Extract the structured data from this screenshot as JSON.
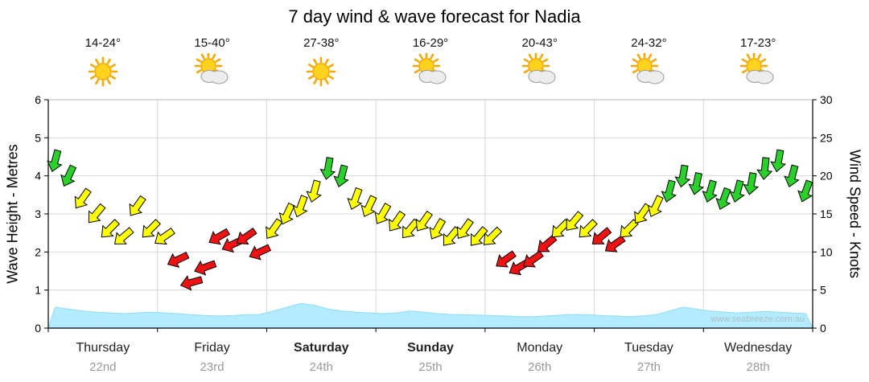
{
  "title": "7 day wind & wave forecast for Nadia",
  "watermark": "www.seabreeze.com.au",
  "axes": {
    "left_label": "Wave Height - Metres",
    "right_label": "Wind Speed - Knots",
    "left_ticks": [
      0,
      1,
      2,
      3,
      4,
      5,
      6
    ],
    "right_ticks": [
      0,
      5,
      10,
      15,
      20,
      25,
      30
    ]
  },
  "days": [
    {
      "name": "Thursday",
      "date": "22nd",
      "temp": "14-24°",
      "icon": "sunny",
      "bold": false
    },
    {
      "name": "Friday",
      "date": "23rd",
      "temp": "15-40°",
      "icon": "partly-cloudy",
      "bold": false
    },
    {
      "name": "Saturday",
      "date": "24th",
      "temp": "27-38°",
      "icon": "sunny",
      "bold": true
    },
    {
      "name": "Sunday",
      "date": "25th",
      "temp": "16-29°",
      "icon": "partly-cloudy",
      "bold": true
    },
    {
      "name": "Monday",
      "date": "26th",
      "temp": "20-43°",
      "icon": "partly-cloudy",
      "bold": false
    },
    {
      "name": "Tuesday",
      "date": "27th",
      "temp": "24-32°",
      "icon": "partly-cloudy",
      "bold": false
    },
    {
      "name": "Wednesday",
      "date": "28th",
      "temp": "17-23°",
      "icon": "partly-cloudy",
      "bold": false
    }
  ],
  "chart_data": {
    "type": "wind-wave-forecast",
    "categories": [
      "Thursday 22nd",
      "Friday 23rd",
      "Saturday 24th",
      "Sunday 25th",
      "Monday 26th",
      "Tuesday 27th",
      "Wednesday 28th"
    ],
    "points_per_day": 8,
    "wind": {
      "name": "Wind Speed",
      "unit": "knots",
      "ylim": [
        0,
        30
      ],
      "speeds": [
        22,
        20,
        17,
        15,
        13,
        12,
        16,
        13,
        12,
        9,
        6,
        8,
        12,
        11,
        12,
        10,
        13,
        15,
        16,
        18,
        21,
        20,
        17,
        16,
        15,
        14,
        13,
        14,
        13,
        12,
        13,
        12,
        12,
        9,
        8,
        9,
        11,
        13,
        14,
        13,
        12,
        11,
        13,
        15,
        16,
        18,
        20,
        19,
        18,
        17,
        18,
        19,
        21,
        22,
        20,
        18
      ],
      "dirs_deg": [
        195,
        205,
        215,
        220,
        225,
        230,
        215,
        225,
        235,
        245,
        255,
        250,
        240,
        245,
        235,
        245,
        215,
        205,
        200,
        195,
        190,
        195,
        200,
        205,
        210,
        215,
        220,
        215,
        210,
        220,
        215,
        220,
        225,
        235,
        240,
        235,
        230,
        225,
        220,
        225,
        230,
        235,
        225,
        215,
        205,
        195,
        190,
        192,
        196,
        200,
        195,
        190,
        186,
        190,
        195,
        200
      ],
      "colors": [
        "green",
        "green",
        "yellow",
        "yellow",
        "yellow",
        "yellow",
        "yellow",
        "yellow",
        "yellow",
        "red",
        "red",
        "red",
        "red",
        "red",
        "red",
        "red",
        "yellow",
        "yellow",
        "yellow",
        "yellow",
        "green",
        "green",
        "yellow",
        "yellow",
        "yellow",
        "yellow",
        "yellow",
        "yellow",
        "yellow",
        "yellow",
        "yellow",
        "yellow",
        "yellow",
        "red",
        "red",
        "red",
        "red",
        "yellow",
        "yellow",
        "yellow",
        "red",
        "red",
        "yellow",
        "yellow",
        "yellow",
        "green",
        "green",
        "green",
        "green",
        "green",
        "green",
        "green",
        "green",
        "green",
        "green",
        "green"
      ]
    },
    "wave": {
      "name": "Wave Height",
      "unit": "metres",
      "ylim": [
        0,
        6
      ],
      "values": [
        0.55,
        0.5,
        0.45,
        0.42,
        0.4,
        0.38,
        0.4,
        0.42,
        0.4,
        0.38,
        0.35,
        0.33,
        0.32,
        0.33,
        0.35,
        0.36,
        0.45,
        0.55,
        0.65,
        0.6,
        0.5,
        0.45,
        0.42,
        0.4,
        0.38,
        0.4,
        0.45,
        0.42,
        0.38,
        0.36,
        0.35,
        0.34,
        0.33,
        0.32,
        0.3,
        0.3,
        0.32,
        0.34,
        0.36,
        0.35,
        0.33,
        0.32,
        0.3,
        0.32,
        0.35,
        0.45,
        0.55,
        0.5,
        0.45,
        0.42,
        0.4,
        0.42,
        0.44,
        0.42,
        0.4,
        0.38
      ]
    },
    "colors": {
      "green": "#2bd12b",
      "yellow": "#ffff00",
      "red": "#ee1212",
      "wave_fill": "#b3ecff",
      "wave_edge": "#8fdcf5",
      "grid": "#d8d8d8",
      "axis": "#000000"
    },
    "legend_position": "none",
    "grid": true
  }
}
